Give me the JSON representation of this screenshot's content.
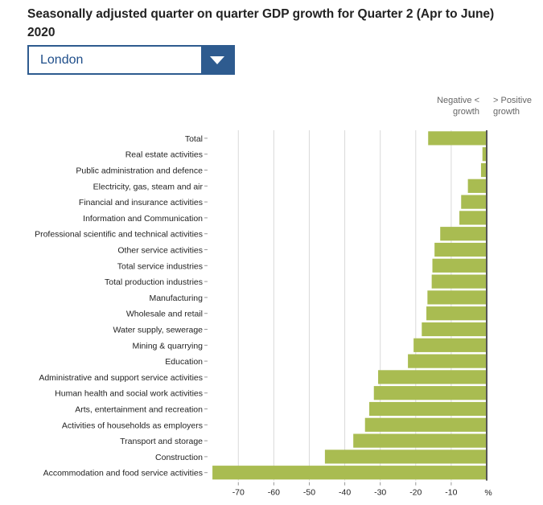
{
  "title": "Seasonally adjusted quarter on quarter GDP growth for Quarter 2 (Apr to June) 2020",
  "selector": {
    "selected": "London",
    "icon": "chevron-down-icon"
  },
  "legend": {
    "negative_line1": "Negative <",
    "negative_line2": "growth",
    "positive_line1": "> Positive",
    "positive_line2": "growth"
  },
  "colors": {
    "bar": "#a9bc51",
    "dropdown": "#2e5b8f",
    "grid": "#d9d9d9",
    "zero_line": "#555555"
  },
  "chart_data": {
    "type": "bar",
    "orientation": "horizontal",
    "xlabel": "%",
    "xlim": [
      -78,
      0.5
    ],
    "xticks": [
      -70,
      -60,
      -50,
      -40,
      -30,
      -20,
      -10
    ],
    "grid": true,
    "categories": [
      "Total",
      "Real estate activities",
      "Public administration and defence",
      "Electricity, gas, steam and air",
      "Financial and insurance activities",
      "Information and Communication",
      "Professional scientific and technical activities",
      "Other service activities",
      "Total service industries",
      "Total production industries",
      "Manufacturing",
      "Wholesale and retail",
      "Water supply, sewerage",
      "Mining & quarrying",
      "Education",
      "Administrative and support service activities",
      "Human health and social work activities",
      "Arts, entertainment and recreation",
      "Activities of households as employers",
      "Transport and storage",
      "Construction",
      "Accommodation and food service activities"
    ],
    "values": [
      -16.5,
      -1.2,
      -1.6,
      -5.3,
      -7.2,
      -7.7,
      -13.1,
      -14.7,
      -15.3,
      -15.5,
      -16.7,
      -17.0,
      -18.3,
      -20.6,
      -22.2,
      -30.6,
      -31.8,
      -33.1,
      -34.3,
      -37.6,
      -45.6,
      -77.3
    ]
  }
}
